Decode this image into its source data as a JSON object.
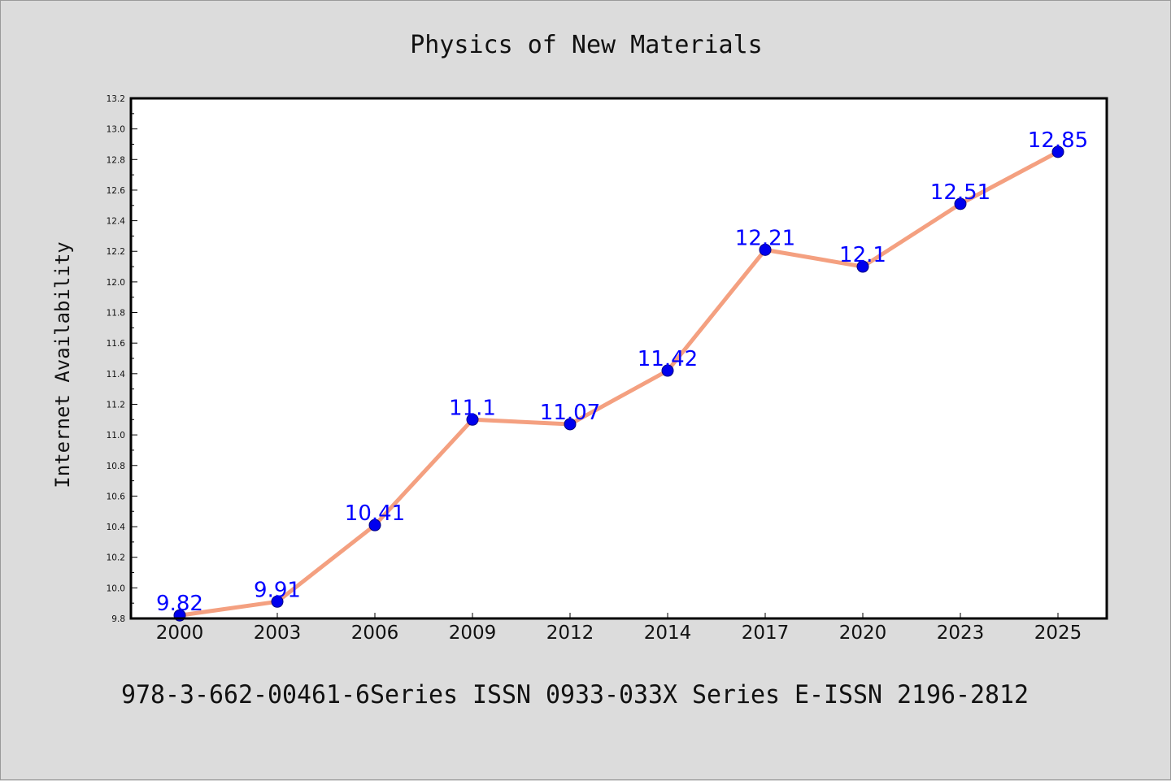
{
  "chart_data": {
    "type": "line",
    "title": "Physics of New Materials",
    "ylabel": "Internet Availability",
    "xlabel": "",
    "categories": [
      "2000",
      "2003",
      "2006",
      "2009",
      "2012",
      "2014",
      "2017",
      "2020",
      "2023",
      "2025"
    ],
    "series": [
      {
        "values": [
          9.82,
          9.91,
          10.41,
          11.1,
          11.07,
          11.42,
          12.21,
          12.1,
          12.51,
          12.85
        ],
        "labels": [
          "9.82",
          "9.91",
          "10.41",
          "11.1",
          "11.07",
          "11.42",
          "12.21",
          "12.1",
          "12.51",
          "12.85"
        ]
      }
    ],
    "ylim": [
      9.8,
      13.2
    ],
    "yticks": [
      "9.8",
      "10.0",
      "10.2",
      "10.4",
      "10.6",
      "10.8",
      "11.0",
      "11.2",
      "11.4",
      "11.6",
      "11.8",
      "12.0",
      "12.2",
      "12.4",
      "12.6",
      "12.8",
      "13.0",
      "13.2"
    ],
    "grid": false,
    "footer": "978-3-662-00461-6Series ISSN 0933-033X Series E-ISSN 2196-2812",
    "colors": {
      "line": "#f4a080",
      "marker": "#0000ee",
      "marker_edge": "#000080",
      "label": "#0000ff",
      "background": "#dcdcdc",
      "plot_background": "#ffffff"
    }
  }
}
